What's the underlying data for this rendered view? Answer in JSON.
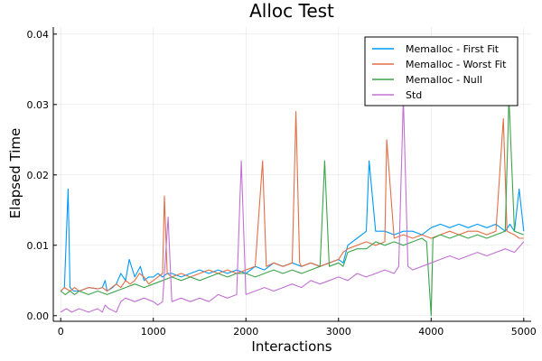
{
  "chart_data": {
    "type": "line",
    "title": "Alloc Test",
    "xlabel": "Interactions",
    "ylabel": "Elapsed Time",
    "xlim": [
      -80,
      5080
    ],
    "ylim": [
      -0.0008,
      0.041
    ],
    "xticks": [
      0,
      1000,
      2000,
      3000,
      4000,
      5000
    ],
    "xtick_labels": [
      "0",
      "1000",
      "2000",
      "3000",
      "4000",
      "5000"
    ],
    "yticks": [
      0.0,
      0.01,
      0.02,
      0.03,
      0.04
    ],
    "ytick_labels": [
      "0.00",
      "0.01",
      "0.02",
      "0.03",
      "0.04"
    ],
    "grid": true,
    "legend_position": "top-right",
    "series": [
      {
        "name": "Memalloc - First Fit",
        "color": "#009af9",
        "x": [
          0,
          40,
          80,
          100,
          140,
          200,
          300,
          400,
          450,
          480,
          500,
          560,
          600,
          650,
          700,
          740,
          800,
          860,
          900,
          950,
          1000,
          1050,
          1100,
          1150,
          1200,
          1300,
          1400,
          1500,
          1600,
          1700,
          1800,
          1900,
          2000,
          2100,
          2200,
          2300,
          2400,
          2500,
          2600,
          2700,
          2800,
          2900,
          3000,
          3050,
          3100,
          3200,
          3300,
          3330,
          3400,
          3500,
          3600,
          3700,
          3800,
          3900,
          3950,
          4000,
          4100,
          4200,
          4300,
          4400,
          4500,
          4600,
          4700,
          4800,
          4850,
          4900,
          4950,
          5000
        ],
        "y": [
          0.0035,
          0.004,
          0.018,
          0.004,
          0.0035,
          0.0035,
          0.004,
          0.0038,
          0.004,
          0.005,
          0.0035,
          0.004,
          0.0045,
          0.006,
          0.005,
          0.008,
          0.0055,
          0.007,
          0.005,
          0.0055,
          0.0055,
          0.006,
          0.0055,
          0.006,
          0.006,
          0.0055,
          0.006,
          0.0065,
          0.006,
          0.0065,
          0.006,
          0.0065,
          0.006,
          0.007,
          0.0065,
          0.0075,
          0.007,
          0.0075,
          0.007,
          0.0075,
          0.007,
          0.0075,
          0.008,
          0.0075,
          0.01,
          0.011,
          0.012,
          0.022,
          0.012,
          0.012,
          0.0115,
          0.012,
          0.012,
          0.0115,
          0.012,
          0.0125,
          0.013,
          0.0125,
          0.013,
          0.0125,
          0.013,
          0.0125,
          0.013,
          0.012,
          0.013,
          0.012,
          0.018,
          0.012
        ]
      },
      {
        "name": "Memalloc - Worst Fit",
        "color": "#e26f46",
        "x": [
          0,
          40,
          100,
          150,
          200,
          300,
          400,
          450,
          500,
          600,
          650,
          700,
          750,
          800,
          850,
          900,
          950,
          1000,
          1050,
          1100,
          1120,
          1150,
          1200,
          1300,
          1400,
          1500,
          1600,
          1700,
          1800,
          1900,
          2000,
          2100,
          2180,
          2220,
          2300,
          2400,
          2500,
          2540,
          2580,
          2600,
          2700,
          2800,
          2900,
          3000,
          3050,
          3100,
          3200,
          3300,
          3400,
          3500,
          3520,
          3600,
          3700,
          3800,
          3900,
          4000,
          4100,
          4200,
          4300,
          4400,
          4500,
          4600,
          4700,
          4780,
          4820,
          4900,
          4950,
          5000
        ],
        "y": [
          0.0035,
          0.004,
          0.0035,
          0.004,
          0.0035,
          0.004,
          0.0038,
          0.004,
          0.0035,
          0.0045,
          0.004,
          0.005,
          0.0045,
          0.005,
          0.006,
          0.0055,
          0.0045,
          0.005,
          0.0055,
          0.006,
          0.017,
          0.006,
          0.0055,
          0.006,
          0.0055,
          0.006,
          0.0065,
          0.006,
          0.0065,
          0.006,
          0.0065,
          0.007,
          0.022,
          0.007,
          0.0075,
          0.007,
          0.0075,
          0.029,
          0.0075,
          0.007,
          0.0075,
          0.007,
          0.0075,
          0.008,
          0.009,
          0.0095,
          0.01,
          0.0105,
          0.01,
          0.0105,
          0.025,
          0.011,
          0.0115,
          0.011,
          0.0115,
          0.011,
          0.0115,
          0.012,
          0.0115,
          0.012,
          0.012,
          0.0115,
          0.012,
          0.028,
          0.012,
          0.0115,
          0.011,
          0.011
        ]
      },
      {
        "name": "Memalloc - Null",
        "color": "#3da44d",
        "x": [
          0,
          50,
          100,
          150,
          200,
          300,
          400,
          500,
          600,
          700,
          800,
          900,
          1000,
          1100,
          1200,
          1300,
          1400,
          1500,
          1600,
          1700,
          1800,
          1900,
          2000,
          2100,
          2200,
          2300,
          2400,
          2500,
          2600,
          2700,
          2800,
          2850,
          2900,
          3000,
          3050,
          3100,
          3200,
          3300,
          3400,
          3500,
          3600,
          3700,
          3800,
          3900,
          3950,
          4000,
          4020,
          4100,
          4200,
          4300,
          4400,
          4500,
          4600,
          4700,
          4800,
          4840,
          4900,
          5000
        ],
        "y": [
          0.0035,
          0.003,
          0.0035,
          0.003,
          0.0035,
          0.003,
          0.0035,
          0.003,
          0.0035,
          0.004,
          0.0045,
          0.004,
          0.0045,
          0.005,
          0.0055,
          0.005,
          0.0055,
          0.005,
          0.0055,
          0.006,
          0.0055,
          0.006,
          0.006,
          0.0055,
          0.006,
          0.0065,
          0.006,
          0.0065,
          0.006,
          0.0065,
          0.007,
          0.022,
          0.007,
          0.0075,
          0.007,
          0.009,
          0.0095,
          0.0095,
          0.0105,
          0.01,
          0.0105,
          0.01,
          0.0105,
          0.011,
          0.0105,
          0.0,
          0.011,
          0.0115,
          0.011,
          0.0115,
          0.011,
          0.0115,
          0.011,
          0.0115,
          0.012,
          0.031,
          0.012,
          0.0115
        ]
      },
      {
        "name": "Std",
        "color": "#c271d2",
        "x": [
          0,
          60,
          120,
          200,
          300,
          400,
          450,
          480,
          520,
          600,
          650,
          700,
          800,
          900,
          1000,
          1050,
          1100,
          1160,
          1200,
          1300,
          1400,
          1500,
          1600,
          1700,
          1800,
          1900,
          1950,
          2000,
          2100,
          2200,
          2300,
          2400,
          2500,
          2600,
          2700,
          2800,
          2900,
          3000,
          3100,
          3200,
          3300,
          3400,
          3500,
          3600,
          3650,
          3700,
          3750,
          3800,
          3900,
          4000,
          4100,
          4200,
          4300,
          4400,
          4500,
          4600,
          4700,
          4800,
          4900,
          5000
        ],
        "y": [
          0.0005,
          0.001,
          0.0005,
          0.001,
          0.0005,
          0.001,
          0.0005,
          0.0015,
          0.001,
          0.0005,
          0.002,
          0.0025,
          0.002,
          0.0025,
          0.002,
          0.0015,
          0.002,
          0.014,
          0.002,
          0.0025,
          0.002,
          0.0025,
          0.002,
          0.003,
          0.0025,
          0.003,
          0.022,
          0.003,
          0.0035,
          0.004,
          0.0035,
          0.004,
          0.0045,
          0.004,
          0.005,
          0.0045,
          0.005,
          0.0055,
          0.005,
          0.006,
          0.0055,
          0.006,
          0.0065,
          0.006,
          0.007,
          0.031,
          0.007,
          0.0065,
          0.007,
          0.0075,
          0.008,
          0.0085,
          0.008,
          0.0085,
          0.009,
          0.0085,
          0.009,
          0.0095,
          0.009,
          0.0105
        ]
      }
    ]
  }
}
